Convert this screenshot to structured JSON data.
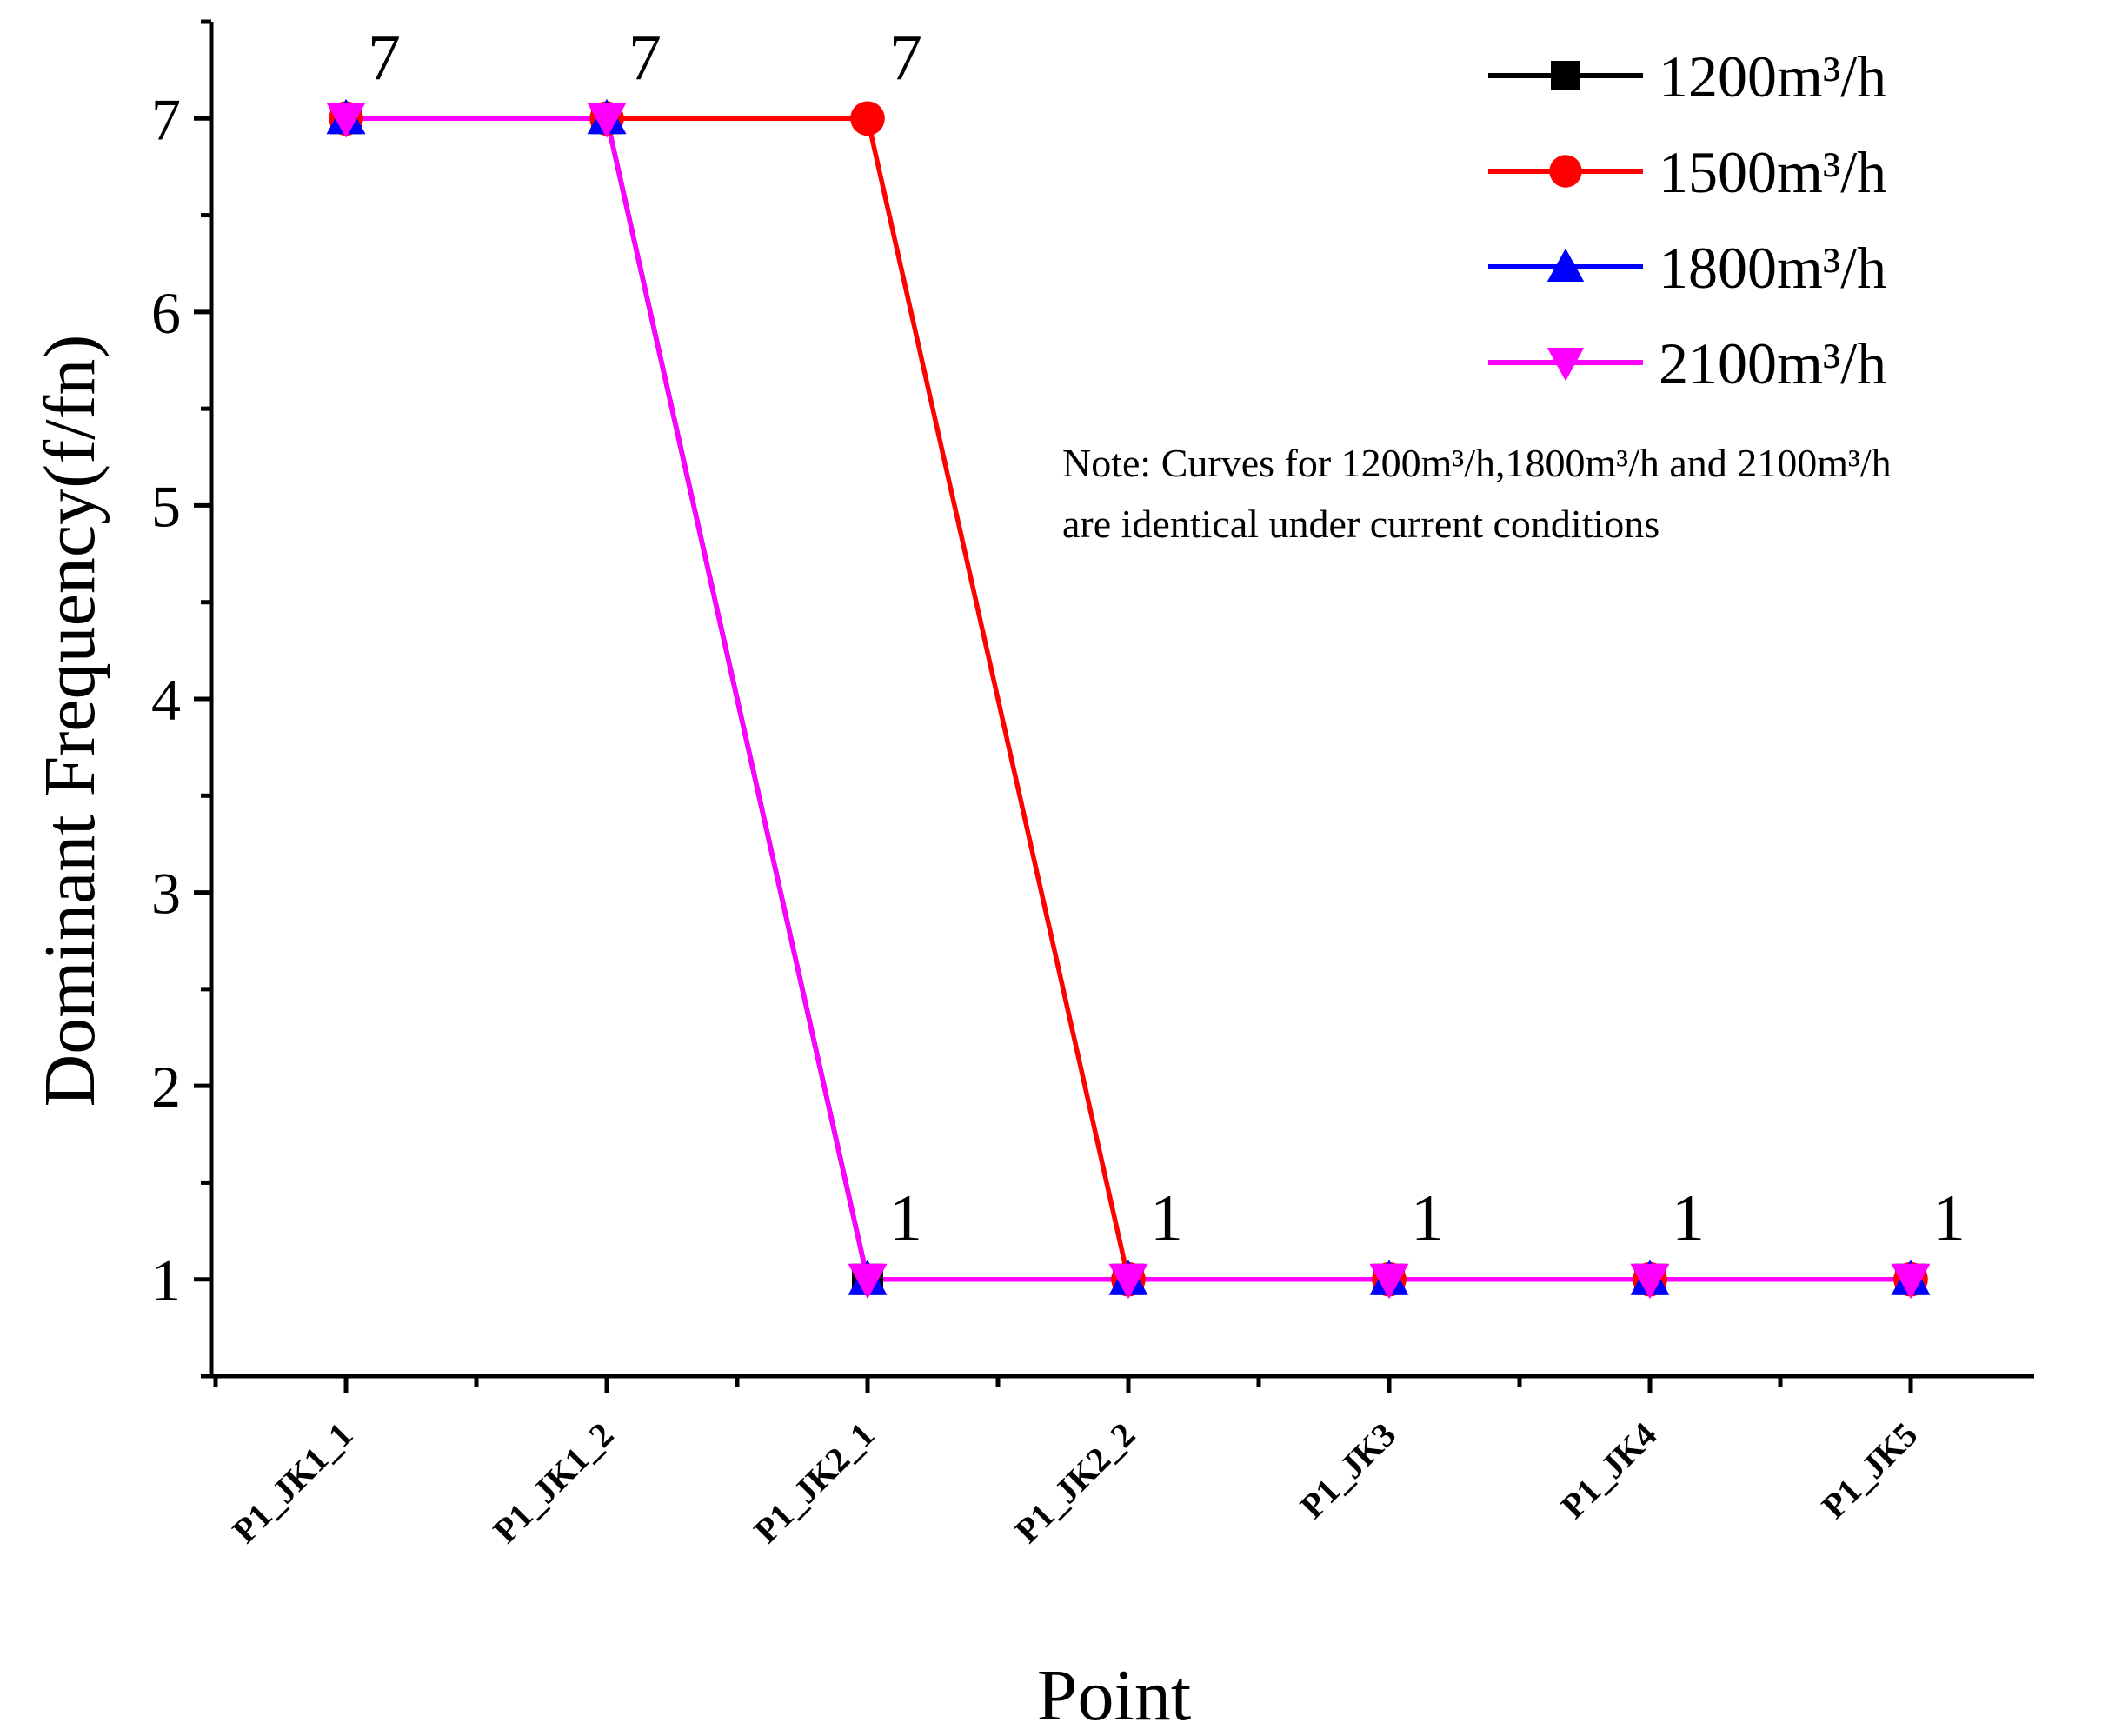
{
  "chart_data": {
    "type": "line",
    "title": "",
    "xlabel": "Point",
    "ylabel": "Dominant Frequency(f/fn)",
    "ylim": [
      0.5,
      7.5
    ],
    "yticks": [
      1,
      2,
      3,
      4,
      5,
      6,
      7
    ],
    "grid": false,
    "legend_position": "top-right",
    "categories": [
      "P1_JK1_1",
      "P1_JK1_2",
      "P1_JK2_1",
      "P1_JK2_2",
      "P1_JK3",
      "P1_JK4",
      "P1_JK5"
    ],
    "series": [
      {
        "name": "1200m³/h",
        "color": "#000000",
        "marker": "square",
        "values": [
          7,
          7,
          1,
          1,
          1,
          1,
          1
        ]
      },
      {
        "name": "1500m³/h",
        "color": "#ff0000",
        "marker": "circle",
        "values": [
          7,
          7,
          7,
          1,
          1,
          1,
          1
        ]
      },
      {
        "name": "1800m³/h",
        "color": "#0000ff",
        "marker": "triangle-up",
        "values": [
          7,
          7,
          1,
          1,
          1,
          1,
          1
        ]
      },
      {
        "name": "2100m³/h",
        "color": "#ff00ff",
        "marker": "triangle-down",
        "values": [
          7,
          7,
          1,
          1,
          1,
          1,
          1
        ]
      }
    ],
    "data_labels": [
      {
        "category": "P1_JK1_1",
        "text": "7",
        "value": 7
      },
      {
        "category": "P1_JK1_2",
        "text": "7",
        "value": 7
      },
      {
        "category": "P1_JK2_1",
        "text": "7",
        "value": 7
      },
      {
        "category": "P1_JK2_1",
        "text": "1",
        "value": 1
      },
      {
        "category": "P1_JK2_2",
        "text": "1",
        "value": 1
      },
      {
        "category": "P1_JK3",
        "text": "1",
        "value": 1
      },
      {
        "category": "P1_JK4",
        "text": "1",
        "value": 1
      },
      {
        "category": "P1_JK5",
        "text": "1",
        "value": 1
      }
    ],
    "note": [
      "Note: Curves for 1200m³/h,1800m³/h and 2100m³/h",
      "are identical under current conditions"
    ]
  }
}
